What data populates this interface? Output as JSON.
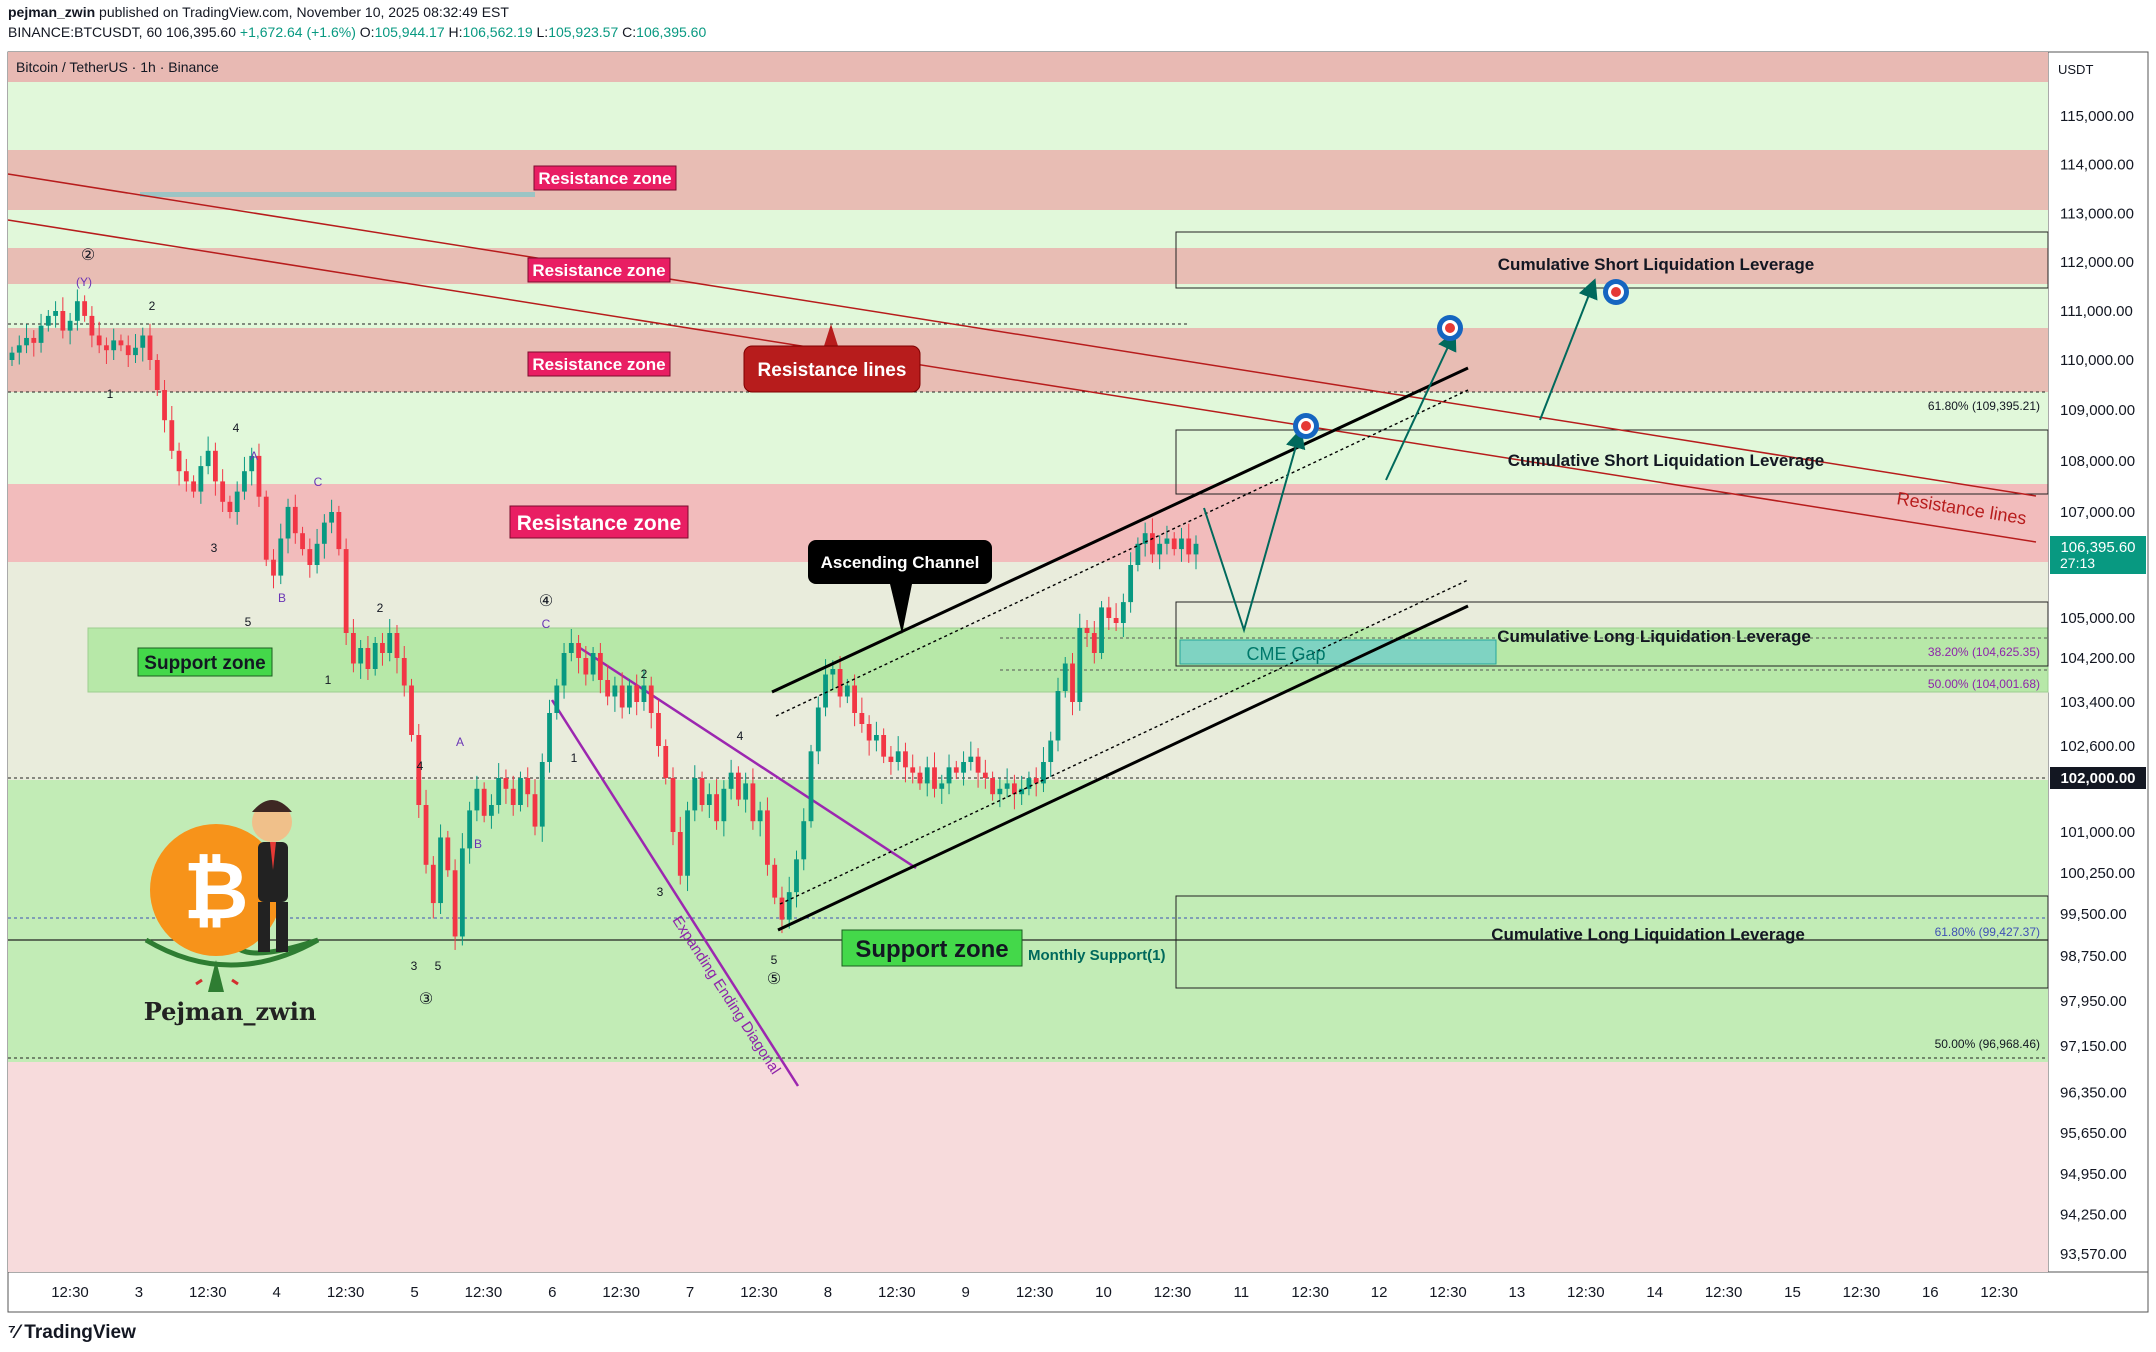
{
  "header": {
    "author": "pejman_zwin",
    "published": "published on TradingView.com, November 10, 2025 08:32:49 EST",
    "symbol": "BINANCE:BTCUSDT, 60",
    "price": "106,395.60",
    "change": "+1,672.64 (+1.6%)",
    "o_label": "O:",
    "o_value": "105,944.17",
    "h_label": "H:",
    "h_value": "106,562.19",
    "l_label": "L:",
    "l_value": "105,923.57",
    "c_label": "C:",
    "c_value": "106,395.60"
  },
  "chart_title": "Bitcoin / TetherUS · 1h · Binance",
  "currency": "USDT",
  "footer_brand": "TradingView",
  "watermark": "Pejman_zwin",
  "colors": {
    "up": "#089981",
    "down": "#f23645",
    "resistance": "#e79a9a",
    "support": "#a7e39a",
    "label_pink": "#e91e63",
    "label_green": "#44d84a",
    "channel": "#000000",
    "diagonal": "#9c27b0",
    "resistance_line": "#b71c1c"
  },
  "chart_data": {
    "type": "candlestick",
    "title": "Bitcoin / TetherUS · 1h · Binance",
    "x_axis_labels": [
      "12:30",
      "3",
      "12:30",
      "4",
      "12:30",
      "5",
      "12:30",
      "6",
      "12:30",
      "7",
      "12:30",
      "8",
      "12:30",
      "9",
      "12:30",
      "10",
      "12:30",
      "11",
      "12:30",
      "12",
      "12:30",
      "13",
      "12:30",
      "14",
      "12:30",
      "15",
      "12:30",
      "16",
      "12:30"
    ],
    "y_axis_labels": [
      "115,000.00",
      "114,000.00",
      "113,000.00",
      "112,000.00",
      "111,000.00",
      "110,000.00",
      "109,000.00",
      "108,000.00",
      "107,000.00",
      "105,000.00",
      "104,200.00",
      "103,400.00",
      "102,600.00",
      "101,000.00",
      "100,250.00",
      "99,500.00",
      "98,750.00",
      "97,950.00",
      "97,150.00",
      "96,350.00",
      "95,650.00",
      "94,950.00",
      "94,250.00",
      "93,570.00"
    ],
    "current_price": "106,395.60",
    "countdown": "27:13",
    "level_102k": "102,000.00",
    "fib_levels": [
      "61.80% (109,395.21)",
      "38.20% (104,625.35)",
      "50.00% (104,001.68)",
      "61.80% (99,427.37)",
      "50.00% (96,968.46)"
    ],
    "zone_labels": [
      "Resistance zone",
      "Resistance zone",
      "Resistance zone",
      "Resistance zone",
      "Support zone",
      "Support zone"
    ],
    "liquidation_labels": [
      "Cumulative Short Liquidation Leverage",
      "Cumulative Short Liquidation Leverage",
      "Cumulative Long Liquidation Leverage",
      "Cumulative Long Liquidation Leverage"
    ],
    "annotations": {
      "resistance_lines": "Resistance lines",
      "resistance_lines_2": "Resistance lines",
      "ascending_channel": "Ascending Channel",
      "cme_gap": "CME Gap",
      "expanding_diagonal": "Expanding Ending Diagonal",
      "monthly_support": "Monthly Support(1)"
    },
    "wave_labels": [
      "②",
      "(Y)",
      "2",
      "1",
      "4",
      "A",
      "C",
      "3",
      "B",
      "5",
      "2",
      "1",
      "④",
      "C",
      "4",
      "A",
      "B",
      "3",
      "5",
      "③",
      "2",
      "1",
      "3",
      "4",
      "5",
      "⑤"
    ],
    "closes": [
      110150,
      110300,
      110450,
      110350,
      110700,
      110900,
      111000,
      110600,
      110800,
      111200,
      110900,
      110500,
      110300,
      110200,
      110400,
      110300,
      110100,
      110250,
      110500,
      110000,
      109400,
      108800,
      108200,
      107800,
      107600,
      107400,
      107900,
      108200,
      107600,
      107200,
      107000,
      107400,
      107800,
      108100,
      107300,
      106100,
      105800,
      106500,
      107100,
      106600,
      106300,
      106000,
      106400,
      106800,
      107000,
      106300,
      104700,
      104100,
      104400,
      104000,
      104500,
      104300,
      104700,
      104200,
      103700,
      102800,
      101500,
      100400,
      99700,
      100900,
      100300,
      99100,
      100700,
      101400,
      101800,
      101300,
      101500,
      102000,
      101800,
      101500,
      102000,
      101700,
      101100,
      102300,
      103200,
      103700,
      104300,
      104500,
      104200,
      103900,
      104300,
      103800,
      103500,
      103700,
      103300,
      103700,
      103400,
      103700,
      103200,
      102600,
      102000,
      101000,
      100200,
      101400,
      102000,
      101500,
      101700,
      101200,
      101800,
      102100,
      101600,
      101900,
      101200,
      101400,
      100400,
      99800,
      99400,
      99900,
      100500,
      101200,
      102500,
      103300,
      103900,
      104000,
      103500,
      103700,
      103200,
      103000,
      102700,
      102800,
      102400,
      102300,
      102500,
      102200,
      102100,
      101900,
      102200,
      101800,
      101900,
      102200,
      102100,
      102300,
      102400,
      102100,
      102000,
      101700,
      101800,
      101900,
      101700,
      101800,
      102000,
      101900,
      102300,
      102700,
      103600,
      104100,
      103400,
      104800,
      104700,
      104300,
      105200,
      105000,
      104900,
      105300,
      106000,
      106400,
      106600,
      106200,
      106400,
      106500,
      106300,
      106500,
      106200,
      106400
    ]
  }
}
